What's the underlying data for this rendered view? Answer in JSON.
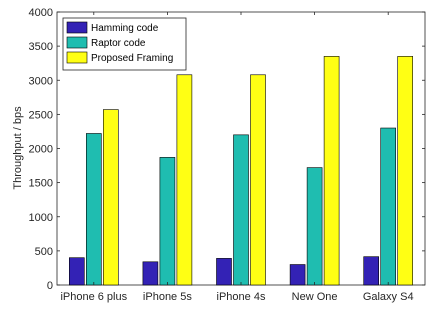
{
  "chart_data": {
    "type": "bar",
    "title": "",
    "xlabel": "",
    "ylabel": "Throughput / bps",
    "categories": [
      "iPhone 6 plus",
      "iPhone 5s",
      "iPhone 4s",
      "New One",
      "Galaxy S4"
    ],
    "series": [
      {
        "name": "Hamming code",
        "color": "#3322b5",
        "values": [
          400,
          340,
          390,
          300,
          415
        ]
      },
      {
        "name": "Raptor code",
        "color": "#1fbdb0",
        "values": [
          2220,
          1870,
          2200,
          1720,
          2300
        ]
      },
      {
        "name": "Proposed Framing",
        "color": "#ffff14",
        "values": [
          2570,
          3080,
          3080,
          3350,
          3350
        ]
      }
    ],
    "ylim": [
      0,
      4000
    ],
    "yticks": [
      0,
      500,
      1000,
      1500,
      2000,
      2500,
      3000,
      3500,
      4000
    ],
    "grid": false,
    "legend_position": "top-left"
  }
}
